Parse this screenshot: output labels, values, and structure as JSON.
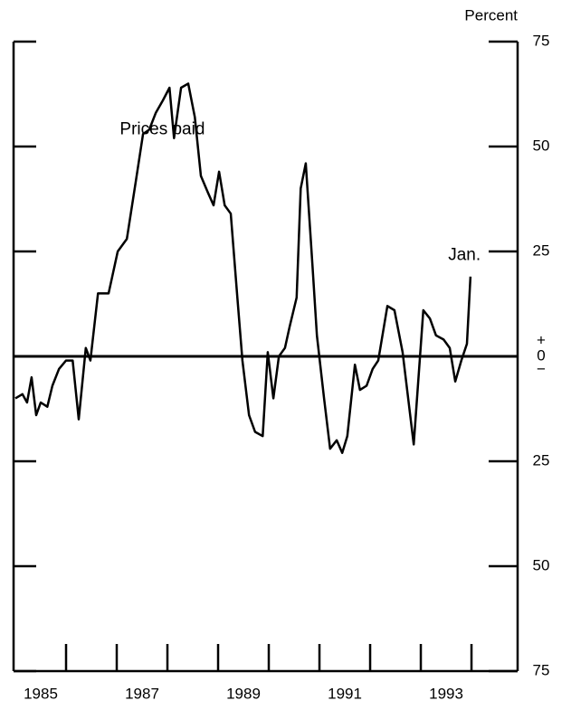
{
  "chart_data": {
    "type": "line",
    "y_axis_label": "Percent",
    "annotations": [
      {
        "text": "Prices paid",
        "x": 1987.9,
        "y": 54
      },
      {
        "text": "Jan.",
        "x": 1993.86,
        "y": 24
      }
    ],
    "series": [
      {
        "name": "Prices paid",
        "color": "#000000",
        "x": [
          1985.0,
          1985.14,
          1985.23,
          1985.32,
          1985.41,
          1985.5,
          1985.63,
          1985.73,
          1985.86,
          1986.0,
          1986.13,
          1986.25,
          1986.39,
          1986.48,
          1986.63,
          1986.84,
          1987.02,
          1987.2,
          1987.38,
          1987.52,
          1987.64,
          1987.77,
          1987.91,
          1988.04,
          1988.13,
          1988.27,
          1988.41,
          1988.54,
          1988.66,
          1988.8,
          1988.91,
          1989.02,
          1989.13,
          1989.25,
          1989.38,
          1989.48,
          1989.61,
          1989.73,
          1989.88,
          1989.98,
          1990.09,
          1990.2,
          1990.32,
          1990.41,
          1990.55,
          1990.63,
          1990.73,
          1990.86,
          1990.95,
          1991.09,
          1991.21,
          1991.34,
          1991.45,
          1991.55,
          1991.7,
          1991.8,
          1991.93,
          1992.05,
          1992.16,
          1992.34,
          1992.48,
          1992.64,
          1992.86,
          1993.05,
          1993.18,
          1993.3,
          1993.45,
          1993.57,
          1993.68,
          1993.8,
          1993.91,
          1993.98
        ],
        "values": [
          -10,
          -9,
          -11,
          -5,
          -14,
          -11,
          -12,
          -7,
          -3,
          -1,
          -1,
          -15,
          2,
          -1,
          15,
          15,
          25,
          28,
          42,
          53,
          54,
          58,
          61,
          64,
          52,
          64,
          65,
          57,
          43,
          39,
          36,
          44,
          36,
          34,
          14,
          -1,
          -14,
          -18,
          -19,
          1,
          -10,
          0,
          2,
          7,
          14,
          40,
          46,
          22,
          5,
          -10,
          -22,
          -20,
          -23,
          -19,
          -2,
          -8,
          -7,
          -3,
          -1,
          12,
          11,
          1,
          -21,
          11,
          9,
          5,
          4,
          2,
          -6,
          -1,
          3,
          19
        ]
      }
    ],
    "xlim": [
      1985,
      1994.91
    ],
    "xticks": [
      {
        "value": 1985.5,
        "label": "1985"
      },
      {
        "value": 1987.5,
        "label": "1987"
      },
      {
        "value": 1989.5,
        "label": "1989"
      },
      {
        "value": 1991.5,
        "label": "1991"
      },
      {
        "value": 1993.5,
        "label": "1993"
      }
    ],
    "x_minor_ticks": [
      1986,
      1987,
      1988,
      1989,
      1990,
      1991,
      1992,
      1993,
      1994
    ],
    "ylim": [
      -75,
      75
    ],
    "yticks": [
      75,
      50,
      25,
      0,
      {
        "value": -25,
        "label": "25"
      },
      {
        "value": -50,
        "label": "50"
      },
      {
        "value": -75,
        "label": "75"
      }
    ],
    "zero_signs": [
      "+",
      "−"
    ],
    "zero_line": true
  }
}
